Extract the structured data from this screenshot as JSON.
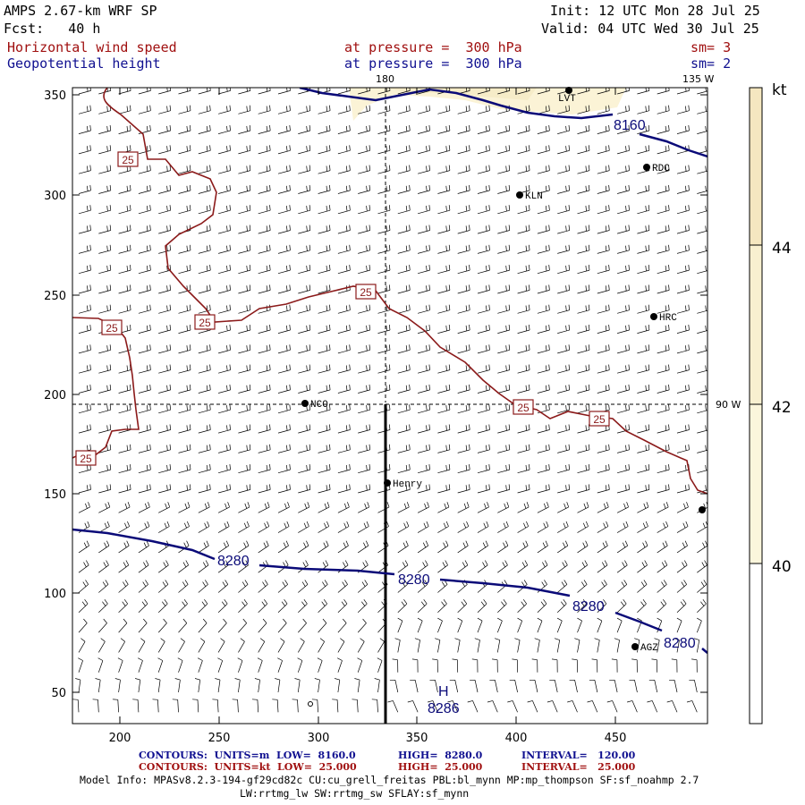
{
  "header": {
    "model": "AMPS 2.67-km WRF SP",
    "fcst": "Fcst:   40 h",
    "init": "Init: 12 UTC Mon 28 Jul 25",
    "valid": "Valid: 04 UTC Wed 30 Jul 25",
    "field1_name": "Horizontal wind speed",
    "field1_level": "at pressure =  300 hPa",
    "field1_sm": "sm= 3",
    "field2_name": "Geopotential height",
    "field2_level": "at pressure =  300 hPa",
    "field2_sm": "sm= 2"
  },
  "map": {
    "x_ticks": [
      "200",
      "250",
      "300",
      "350",
      "400",
      "450"
    ],
    "y_ticks": [
      "350",
      "300",
      "250",
      "200",
      "150",
      "100",
      "50"
    ],
    "meridian_labels": {
      "top_180": "180",
      "top_135w": "135 W",
      "right_90w": "90 W"
    },
    "stations": [
      {
        "name": "LVT"
      },
      {
        "name": "RDC"
      },
      {
        "name": "KLN"
      },
      {
        "name": "HRC"
      },
      {
        "name": "NCO"
      },
      {
        "name": "Henry"
      },
      {
        "name": "AGZ"
      },
      {
        "name": ""
      }
    ],
    "height_contours": [
      {
        "label": "8160",
        "value_m": 8160
      },
      {
        "label": "8280",
        "value_m": 8280
      }
    ],
    "height_max_label": "H",
    "height_max_value": "8286",
    "speed_contour_label": "25",
    "speed_contour_kt": 25,
    "colors": {
      "height_contour": "#0a0a78",
      "speed_contour": "#8b1a1a",
      "shade_40_42": "#fbf6dc",
      "shade_42_44": "#f8f0d0",
      "shade_44_plus": "#f5e7c0"
    }
  },
  "colorbar": {
    "unit": "kt",
    "levels": [
      "44",
      "42",
      "40"
    ]
  },
  "footer": {
    "line1_label": "CONTOURS:  UNITS=m  LOW=  8160.0",
    "line1_high": "HIGH=  8280.0",
    "line1_interval": "INTERVAL=   120.00",
    "line2_label": "CONTOURS:  UNITS=kt  LOW=  25.000",
    "line2_high": "HIGH=  25.000",
    "line2_interval": "INTERVAL=   25.000",
    "model_info": "Model Info: MPASv8.2.3-194-gf29cd82c CU:cu_grell_freitas PBL:bl_mynn MP:mp_thompson SF:sf_noahmp 2.7",
    "model_info2": "LW:rrtmg_lw SW:rrtmg_sw SFLAY:sf_mynn"
  }
}
